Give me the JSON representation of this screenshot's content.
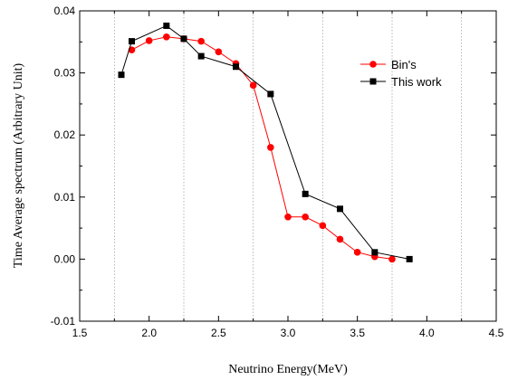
{
  "chart_data": {
    "type": "line",
    "xlabel": "Neutrino Energy(MeV)",
    "ylabel": "Time Average spectrum (Arbitrary Unit)",
    "xlim": [
      1.5,
      4.5
    ],
    "ylim": [
      -0.01,
      0.04
    ],
    "x_ticks": [
      "1.5",
      "2.0",
      "2.5",
      "3.0",
      "3.5",
      "4.0",
      "4.5"
    ],
    "y_ticks": [
      "-0.01",
      "0.00",
      "0.01",
      "0.02",
      "0.03",
      "0.04"
    ],
    "grid": "vertical-dotted",
    "legend_position": "top-right",
    "series": [
      {
        "name": "Bin's",
        "color": "#ff0000",
        "marker": "circle",
        "x": [
          1.875,
          2.0,
          2.125,
          2.25,
          2.375,
          2.5,
          2.625,
          2.75,
          2.875,
          3.0,
          3.125,
          3.25,
          3.375,
          3.5,
          3.625,
          3.75
        ],
        "y": [
          0.0337,
          0.0352,
          0.0358,
          0.0355,
          0.0351,
          0.0334,
          0.0315,
          0.028,
          0.018,
          0.0068,
          0.0068,
          0.0054,
          0.0032,
          0.0011,
          0.0004,
          0.0
        ]
      },
      {
        "name": "This work",
        "color": "#000000",
        "marker": "square",
        "x": [
          1.8,
          1.875,
          2.125,
          2.25,
          2.375,
          2.625,
          2.875,
          3.125,
          3.375,
          3.625,
          3.875
        ],
        "y": [
          0.0297,
          0.0351,
          0.0376,
          0.0355,
          0.0327,
          0.031,
          0.0266,
          0.0105,
          0.0081,
          0.0011,
          0.0
        ]
      }
    ]
  }
}
